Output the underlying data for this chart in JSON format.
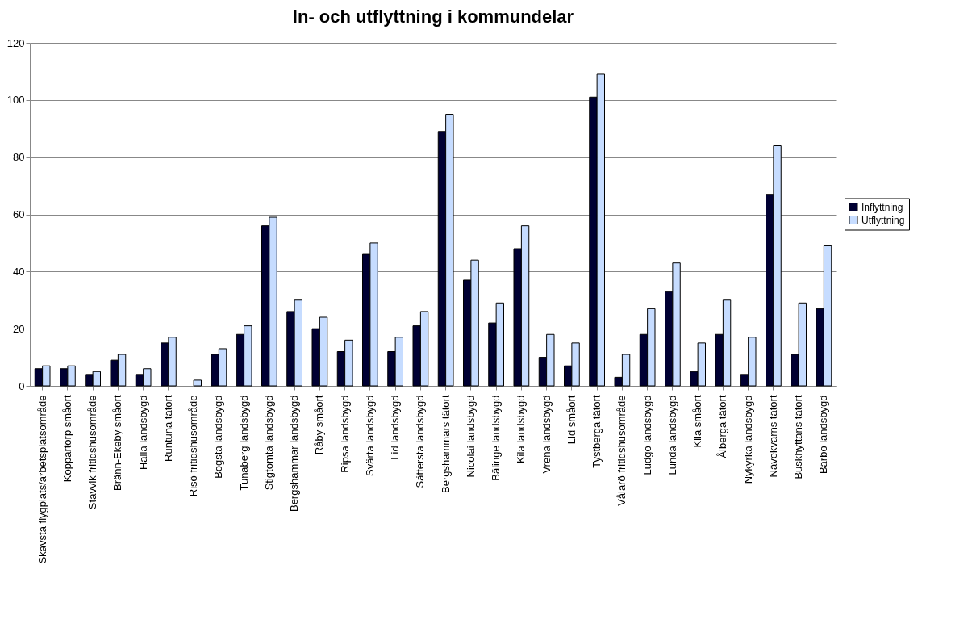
{
  "chart_data": {
    "type": "bar",
    "title": "In- och utflyttning i kommundelar",
    "categories": [
      "Skavsta flygplats/arbetsplatsområde",
      "Koppartorp småort",
      "Stavvik fritidshusområde",
      "Bränn-Ekeby småort",
      "Halla landsbygd",
      "Runtuna tätort",
      "Risö fritidshusområde",
      "Bogsta landsbygd",
      "Tunaberg landsbygd",
      "Stigtomta landsbygd",
      "Bergshammar landsbygd",
      "Råby småort",
      "Ripsa landsbygd",
      "Svärta landsbygd",
      "Lid landsbygd",
      "Sättersta  landsbygd",
      "Bergshammars tätort",
      "Nicolai landsbygd",
      "Bälinge landsbygd",
      "Kila landsbygd",
      "Vrena landsbygd",
      "Lid småort",
      "Tystberga tätort",
      "Vålarö fritidshusområde",
      "Ludgo landsbygd",
      "Lunda landsbygd",
      "Kila småort",
      "Ålberga tätort",
      "Nykyrka landsbygd",
      "Nävekvarns tätort",
      "Buskhyttans tätort",
      "Bärbo landsbygd"
    ],
    "series": [
      {
        "name": "Inflyttning",
        "color": "#000033",
        "values": [
          6,
          6,
          4,
          9,
          4,
          15,
          0,
          11,
          18,
          56,
          26,
          20,
          12,
          46,
          12,
          21,
          89,
          37,
          22,
          48,
          10,
          7,
          101,
          3,
          18,
          33,
          5,
          18,
          4,
          67,
          11,
          27
        ]
      },
      {
        "name": "Utflyttning",
        "color": "#c6dcff",
        "values": [
          7,
          7,
          5,
          11,
          6,
          17,
          2,
          13,
          21,
          59,
          30,
          24,
          16,
          50,
          17,
          26,
          95,
          44,
          29,
          56,
          18,
          15,
          109,
          11,
          27,
          43,
          15,
          30,
          17,
          84,
          29,
          49
        ]
      }
    ],
    "ylim": [
      0,
      120
    ],
    "yticks": [
      0,
      20,
      40,
      60,
      80,
      100,
      120
    ],
    "grid": "y",
    "legend": "right"
  }
}
